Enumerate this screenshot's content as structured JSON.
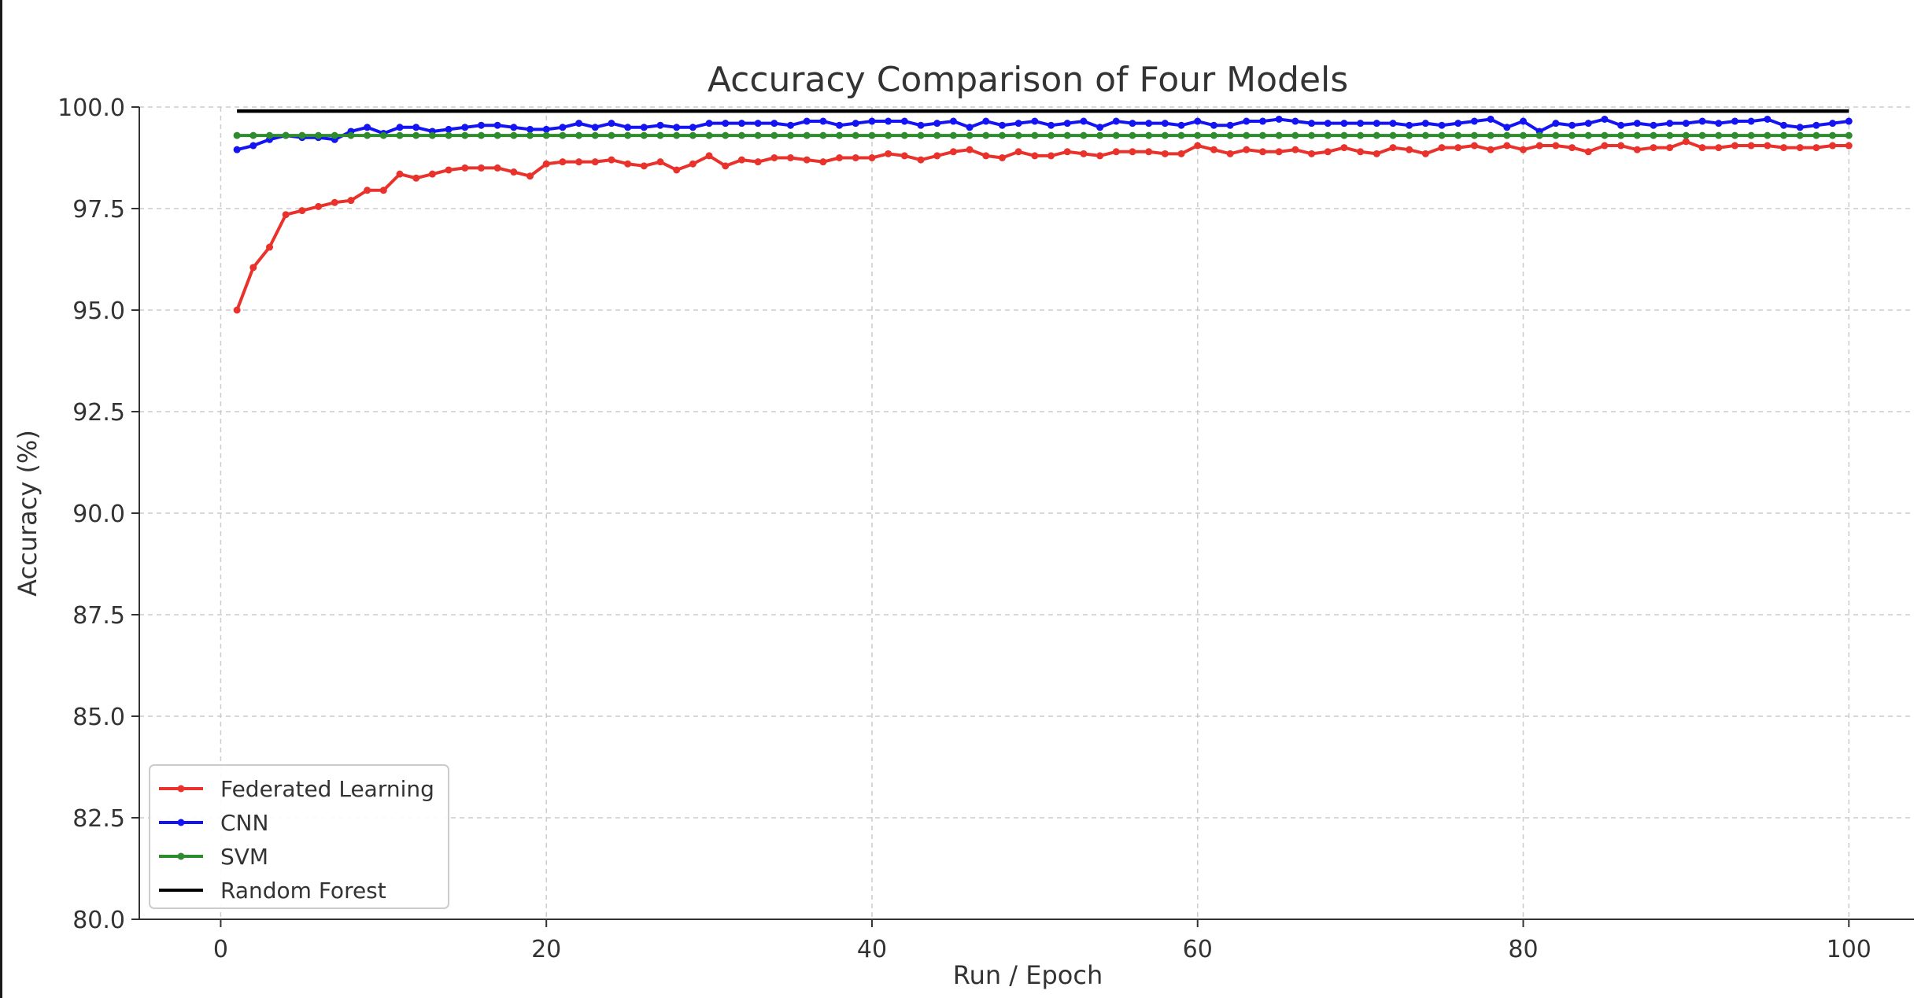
{
  "chart_data": {
    "type": "line",
    "title": "Accuracy Comparison of Four Models",
    "xlabel": "Run / Epoch",
    "ylabel": "Accuracy (%)",
    "xlim": [
      -5,
      104
    ],
    "ylim": [
      80,
      100
    ],
    "xticks": [
      "0",
      "20",
      "40",
      "60",
      "80",
      "100"
    ],
    "yticks": [
      "80.0",
      "82.5",
      "85.0",
      "87.5",
      "90.0",
      "92.5",
      "95.0",
      "97.5",
      "100.0"
    ],
    "grid": true,
    "legend_position": "lower-left",
    "x": [
      1,
      2,
      3,
      4,
      5,
      6,
      7,
      8,
      9,
      10,
      11,
      12,
      13,
      14,
      15,
      16,
      17,
      18,
      19,
      20,
      21,
      22,
      23,
      24,
      25,
      26,
      27,
      28,
      29,
      30,
      31,
      32,
      33,
      34,
      35,
      36,
      37,
      38,
      39,
      40,
      41,
      42,
      43,
      44,
      45,
      46,
      47,
      48,
      49,
      50,
      51,
      52,
      53,
      54,
      55,
      56,
      57,
      58,
      59,
      60,
      61,
      62,
      63,
      64,
      65,
      66,
      67,
      68,
      69,
      70,
      71,
      72,
      73,
      74,
      75,
      76,
      77,
      78,
      79,
      80,
      81,
      82,
      83,
      84,
      85,
      86,
      87,
      88,
      89,
      90,
      91,
      92,
      93,
      94,
      95,
      96,
      97,
      98,
      99,
      100
    ],
    "series": [
      {
        "name": "Federated Learning",
        "color": "#e8322b",
        "marker": true,
        "values": [
          95.0,
          96.05,
          96.55,
          97.35,
          97.45,
          97.55,
          97.65,
          97.7,
          97.95,
          97.95,
          98.35,
          98.25,
          98.35,
          98.45,
          98.5,
          98.5,
          98.5,
          98.4,
          98.3,
          98.6,
          98.65,
          98.65,
          98.65,
          98.7,
          98.6,
          98.55,
          98.65,
          98.45,
          98.6,
          98.8,
          98.55,
          98.7,
          98.65,
          98.75,
          98.75,
          98.7,
          98.65,
          98.75,
          98.75,
          98.75,
          98.85,
          98.8,
          98.7,
          98.8,
          98.9,
          98.95,
          98.8,
          98.75,
          98.9,
          98.8,
          98.8,
          98.9,
          98.85,
          98.8,
          98.9,
          98.9,
          98.9,
          98.85,
          98.85,
          99.05,
          98.95,
          98.85,
          98.95,
          98.9,
          98.9,
          98.95,
          98.85,
          98.9,
          99.0,
          98.9,
          98.85,
          99.0,
          98.95,
          98.85,
          99.0,
          99.0,
          99.05,
          98.95,
          99.05,
          98.95,
          99.05,
          99.05,
          99.0,
          98.9,
          99.05,
          99.05,
          98.95,
          99.0,
          99.0,
          99.15,
          99.0,
          99.0,
          99.05,
          99.05,
          99.05,
          99.0,
          99.0,
          99.0,
          99.05,
          99.05
        ]
      },
      {
        "name": "CNN",
        "color": "#1414f2",
        "marker": true,
        "values": [
          98.95,
          99.05,
          99.2,
          99.3,
          99.25,
          99.25,
          99.2,
          99.4,
          99.5,
          99.35,
          99.5,
          99.5,
          99.4,
          99.45,
          99.5,
          99.55,
          99.55,
          99.5,
          99.45,
          99.45,
          99.5,
          99.6,
          99.5,
          99.6,
          99.5,
          99.5,
          99.55,
          99.5,
          99.5,
          99.6,
          99.6,
          99.6,
          99.6,
          99.6,
          99.55,
          99.65,
          99.65,
          99.55,
          99.6,
          99.65,
          99.65,
          99.65,
          99.55,
          99.6,
          99.65,
          99.5,
          99.65,
          99.55,
          99.6,
          99.65,
          99.55,
          99.6,
          99.65,
          99.5,
          99.65,
          99.6,
          99.6,
          99.6,
          99.55,
          99.65,
          99.55,
          99.55,
          99.65,
          99.65,
          99.7,
          99.65,
          99.6,
          99.6,
          99.6,
          99.6,
          99.6,
          99.6,
          99.55,
          99.6,
          99.55,
          99.6,
          99.65,
          99.7,
          99.5,
          99.65,
          99.4,
          99.6,
          99.55,
          99.6,
          99.7,
          99.55,
          99.6,
          99.55,
          99.6,
          99.6,
          99.65,
          99.6,
          99.65,
          99.65,
          99.7,
          99.55,
          99.5,
          99.55,
          99.6,
          99.65
        ]
      },
      {
        "name": "SVM",
        "color": "#2e8b2e",
        "marker": true,
        "values": [
          99.3,
          99.3,
          99.3,
          99.3,
          99.3,
          99.3,
          99.3,
          99.3,
          99.3,
          99.3,
          99.3,
          99.3,
          99.3,
          99.3,
          99.3,
          99.3,
          99.3,
          99.3,
          99.3,
          99.3,
          99.3,
          99.3,
          99.3,
          99.3,
          99.3,
          99.3,
          99.3,
          99.3,
          99.3,
          99.3,
          99.3,
          99.3,
          99.3,
          99.3,
          99.3,
          99.3,
          99.3,
          99.3,
          99.3,
          99.3,
          99.3,
          99.3,
          99.3,
          99.3,
          99.3,
          99.3,
          99.3,
          99.3,
          99.3,
          99.3,
          99.3,
          99.3,
          99.3,
          99.3,
          99.3,
          99.3,
          99.3,
          99.3,
          99.3,
          99.3,
          99.3,
          99.3,
          99.3,
          99.3,
          99.3,
          99.3,
          99.3,
          99.3,
          99.3,
          99.3,
          99.3,
          99.3,
          99.3,
          99.3,
          99.3,
          99.3,
          99.3,
          99.3,
          99.3,
          99.3,
          99.3,
          99.3,
          99.3,
          99.3,
          99.3,
          99.3,
          99.3,
          99.3,
          99.3,
          99.3,
          99.3,
          99.3,
          99.3,
          99.3,
          99.3,
          99.3,
          99.3,
          99.3,
          99.3,
          99.3
        ]
      },
      {
        "name": "Random Forest",
        "color": "#000000",
        "marker": false,
        "values": [
          99.9,
          99.9,
          99.9,
          99.9,
          99.9,
          99.9,
          99.9,
          99.9,
          99.9,
          99.9,
          99.9,
          99.9,
          99.9,
          99.9,
          99.9,
          99.9,
          99.9,
          99.9,
          99.9,
          99.9,
          99.9,
          99.9,
          99.9,
          99.9,
          99.9,
          99.9,
          99.9,
          99.9,
          99.9,
          99.9,
          99.9,
          99.9,
          99.9,
          99.9,
          99.9,
          99.9,
          99.9,
          99.9,
          99.9,
          99.9,
          99.9,
          99.9,
          99.9,
          99.9,
          99.9,
          99.9,
          99.9,
          99.9,
          99.9,
          99.9,
          99.9,
          99.9,
          99.9,
          99.9,
          99.9,
          99.9,
          99.9,
          99.9,
          99.9,
          99.9,
          99.9,
          99.9,
          99.9,
          99.9,
          99.9,
          99.9,
          99.9,
          99.9,
          99.9,
          99.9,
          99.9,
          99.9,
          99.9,
          99.9,
          99.9,
          99.9,
          99.9,
          99.9,
          99.9,
          99.9,
          99.9,
          99.9,
          99.9,
          99.9,
          99.9,
          99.9,
          99.9,
          99.9,
          99.9,
          99.9,
          99.9,
          99.9,
          99.9,
          99.9,
          99.9,
          99.9,
          99.9,
          99.9,
          99.9,
          99.9
        ]
      }
    ]
  }
}
